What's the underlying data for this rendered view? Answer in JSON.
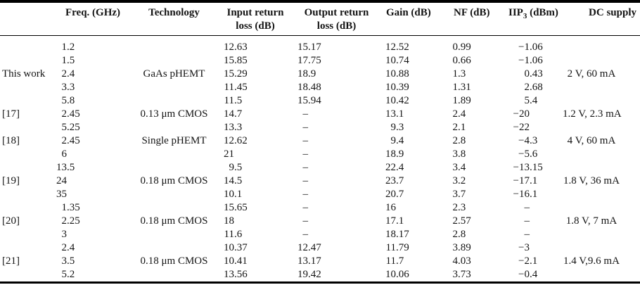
{
  "table": {
    "header": {
      "ref": "",
      "freq": "Freq. (GHz)",
      "tech": "Technology",
      "irl_line1": "Input return",
      "irl_line2": "loss (dB)",
      "orl_line1": "Output return",
      "orl_line2": "loss (dB)",
      "gain": "Gain (dB)",
      "nf": "NF (dB)",
      "iip3_pre": "IIP",
      "iip3_sub": "3",
      "iip3_post": " (dBm)",
      "dc": "DC supply"
    },
    "missing_value_symbol": "–",
    "rows": [
      {
        "ref": "",
        "freq": "1.2",
        "tech": "",
        "irl": "12.63",
        "orl": "15.17",
        "gain": "12.52",
        "nf": "0.99",
        "iip3": "−1.06",
        "dc": ""
      },
      {
        "ref": "",
        "freq": "1.5",
        "tech": "",
        "irl": "15.85",
        "orl": "17.75",
        "gain": "10.74",
        "nf": "0.66",
        "iip3": "−1.06",
        "dc": ""
      },
      {
        "ref": "This work",
        "freq": "2.4",
        "tech": "GaAs pHEMT",
        "irl": "15.29",
        "orl": "18.9",
        "gain": "10.88",
        "nf": "1.3",
        "iip3": "0.43",
        "dc": "2 V, 60 mA"
      },
      {
        "ref": "",
        "freq": "3.3",
        "tech": "",
        "irl": "11.45",
        "orl": "18.48",
        "gain": "10.39",
        "nf": "1.31",
        "iip3": "2.68",
        "dc": ""
      },
      {
        "ref": "",
        "freq": "5.8",
        "tech": "",
        "irl": "11.5",
        "orl": "15.94",
        "gain": "10.42",
        "nf": "1.89",
        "iip3": "5.4",
        "dc": ""
      },
      {
        "ref": "[17]",
        "freq": "2.45",
        "tech": "0.13 μm CMOS",
        "irl": "14.7",
        "orl": "–",
        "gain": "13.1",
        "nf": "2.4",
        "iip3": "−20",
        "dc": "1.2 V, 2.3 mA"
      },
      {
        "ref": "",
        "freq": "5.25",
        "tech": "",
        "irl": "13.3",
        "orl": "–",
        "gain": "9.3",
        "nf": "2.1",
        "iip3": "−22",
        "dc": ""
      },
      {
        "ref": "[18]",
        "freq": "2.45",
        "tech": "Single pHEMT",
        "irl": "12.62",
        "orl": "–",
        "gain": "9.4",
        "nf": "2.8",
        "iip3": "−4.3",
        "dc": "4 V, 60 mA"
      },
      {
        "ref": "",
        "freq": "6",
        "tech": "",
        "irl": "21",
        "orl": "–",
        "gain": "18.9",
        "nf": "3.8",
        "iip3": "−5.6",
        "dc": ""
      },
      {
        "ref": "",
        "freq": "13.5",
        "tech": "",
        "irl": "9.5",
        "orl": "–",
        "gain": "22.4",
        "nf": "3.4",
        "iip3": "−13.15",
        "dc": ""
      },
      {
        "ref": "[19]",
        "freq": "24",
        "tech": "0.18 μm CMOS",
        "irl": "14.5",
        "orl": "–",
        "gain": "23.7",
        "nf": "3.2",
        "iip3": "−17.1",
        "dc": "1.8 V, 36 mA"
      },
      {
        "ref": "",
        "freq": "35",
        "tech": "",
        "irl": "10.1",
        "orl": "–",
        "gain": "20.7",
        "nf": "3.7",
        "iip3": "−16.1",
        "dc": ""
      },
      {
        "ref": "",
        "freq": "1.35",
        "tech": "",
        "irl": "15.65",
        "orl": "–",
        "gain": "16",
        "nf": "2.3",
        "iip3": "–",
        "dc": ""
      },
      {
        "ref": "[20]",
        "freq": "2.25",
        "tech": "0.18 μm CMOS",
        "irl": "18",
        "orl": "–",
        "gain": "17.1",
        "nf": "2.57",
        "iip3": "–",
        "dc": "1.8 V, 7 mA"
      },
      {
        "ref": "",
        "freq": "3",
        "tech": "",
        "irl": "11.6",
        "orl": "–",
        "gain": "18.17",
        "nf": "2.8",
        "iip3": "–",
        "dc": ""
      },
      {
        "ref": "",
        "freq": "2.4",
        "tech": "",
        "irl": "10.37",
        "orl": "12.47",
        "gain": "11.79",
        "nf": "3.89",
        "iip3": "−3",
        "dc": ""
      },
      {
        "ref": "[21]",
        "freq": "3.5",
        "tech": "0.18 μm CMOS",
        "irl": "10.41",
        "orl": "13.17",
        "gain": "11.7",
        "nf": "4.03",
        "iip3": "−2.1",
        "dc": "1.4 V,9.6 mA"
      },
      {
        "ref": "",
        "freq": "5.2",
        "tech": "",
        "irl": "13.56",
        "orl": "19.42",
        "gain": "10.06",
        "nf": "3.73",
        "iip3": "−0.4",
        "dc": ""
      }
    ]
  }
}
